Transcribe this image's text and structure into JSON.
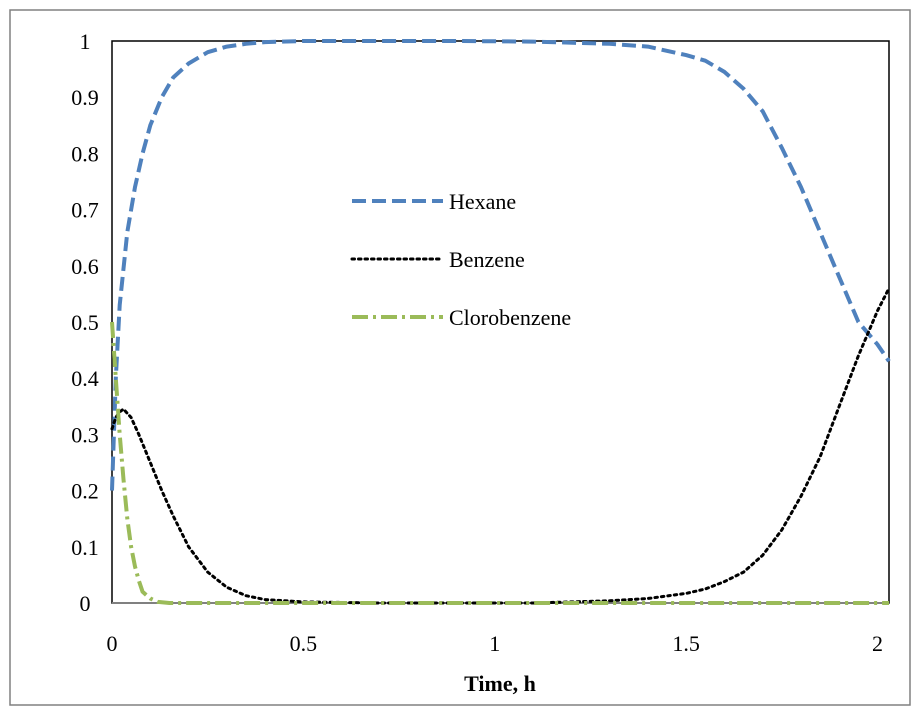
{
  "chart_data": {
    "type": "line",
    "title": "",
    "xlabel": "Time, h",
    "ylabel": "",
    "xlim": [
      0,
      2.03
    ],
    "ylim": [
      0,
      1
    ],
    "x_ticks": [
      "0",
      "0.5",
      "1",
      "1.5",
      "2"
    ],
    "y_ticks": [
      "0",
      "0.1",
      "0.2",
      "0.3",
      "0.4",
      "0.5",
      "0.6",
      "0.7",
      "0.8",
      "0.9",
      "1"
    ],
    "grid": false,
    "legend_position": "center",
    "series": [
      {
        "name": "Hexane",
        "color": "#4f81bd",
        "dash": "dashed",
        "x": [
          0,
          0.01,
          0.02,
          0.04,
          0.06,
          0.08,
          0.1,
          0.13,
          0.16,
          0.2,
          0.25,
          0.3,
          0.35,
          0.4,
          0.5,
          0.7,
          0.9,
          1.1,
          1.3,
          1.4,
          1.5,
          1.55,
          1.6,
          1.65,
          1.7,
          1.75,
          1.8,
          1.85,
          1.9,
          1.95,
          2.0,
          2.03
        ],
        "y": [
          0.2,
          0.4,
          0.53,
          0.66,
          0.74,
          0.8,
          0.85,
          0.9,
          0.935,
          0.96,
          0.98,
          0.99,
          0.995,
          0.998,
          1.0,
          1.0,
          1.0,
          0.999,
          0.995,
          0.99,
          0.975,
          0.965,
          0.945,
          0.915,
          0.875,
          0.81,
          0.74,
          0.66,
          0.58,
          0.5,
          0.46,
          0.43
        ]
      },
      {
        "name": "Benzene",
        "color": "#000000",
        "dash": "dotted",
        "x": [
          0,
          0.01,
          0.02,
          0.03,
          0.05,
          0.07,
          0.1,
          0.13,
          0.16,
          0.2,
          0.25,
          0.3,
          0.35,
          0.4,
          0.5,
          0.7,
          0.9,
          1.1,
          1.2,
          1.3,
          1.4,
          1.5,
          1.55,
          1.6,
          1.65,
          1.7,
          1.75,
          1.8,
          1.85,
          1.9,
          1.95,
          2.0,
          2.03
        ],
        "y": [
          0.31,
          0.33,
          0.34,
          0.345,
          0.33,
          0.3,
          0.25,
          0.2,
          0.155,
          0.1,
          0.055,
          0.028,
          0.013,
          0.006,
          0.002,
          0.0,
          0.0,
          0.0,
          0.002,
          0.004,
          0.008,
          0.017,
          0.025,
          0.038,
          0.055,
          0.085,
          0.13,
          0.19,
          0.26,
          0.35,
          0.44,
          0.52,
          0.56
        ]
      },
      {
        "name": "Clorobenzene",
        "color": "#9bbb59",
        "dash": "dashdot",
        "x": [
          0,
          0.01,
          0.02,
          0.03,
          0.04,
          0.05,
          0.06,
          0.07,
          0.08,
          0.1,
          0.12,
          0.15,
          0.3,
          0.6,
          1.0,
          1.5,
          2.0,
          2.03
        ],
        "y": [
          0.5,
          0.4,
          0.3,
          0.22,
          0.15,
          0.1,
          0.065,
          0.04,
          0.02,
          0.008,
          0.002,
          0.0,
          0.0,
          0.0,
          0.0,
          0.0,
          0.0,
          0.0
        ]
      }
    ]
  }
}
